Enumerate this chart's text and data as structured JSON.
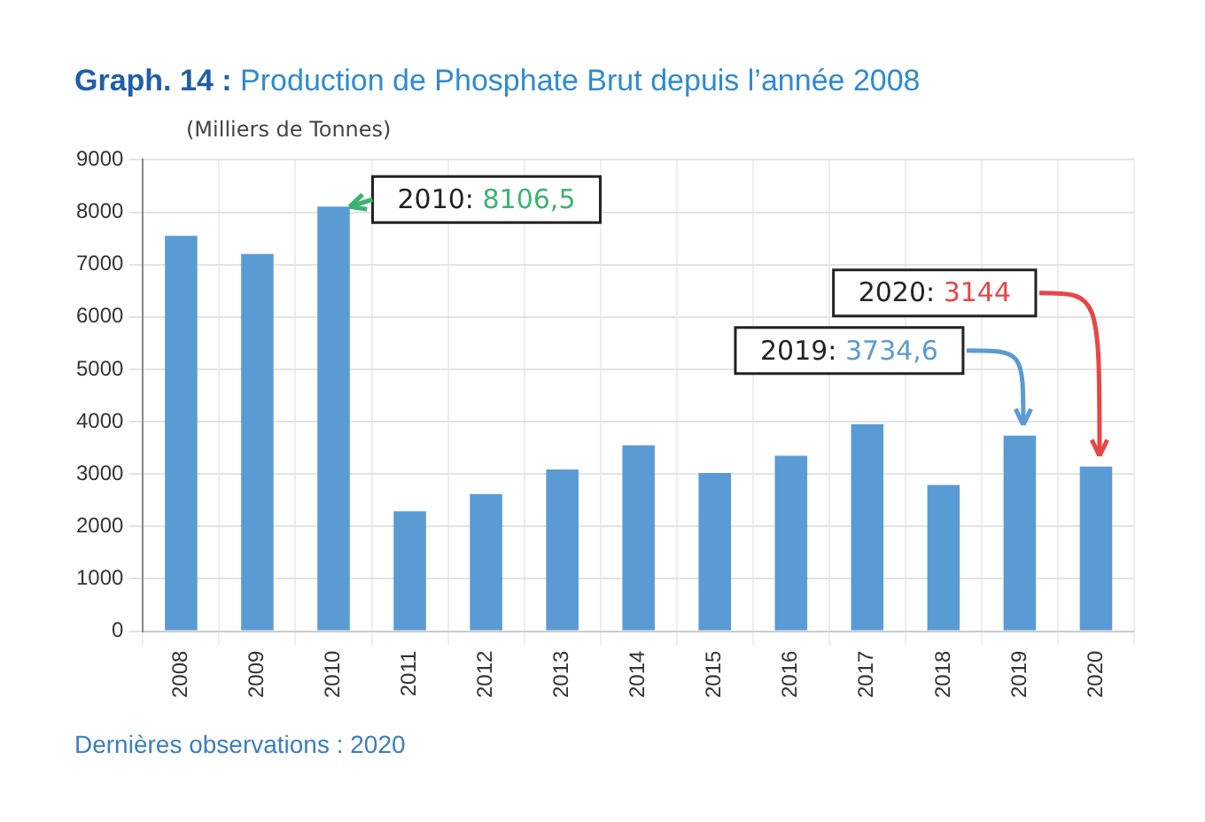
{
  "chart_data": {
    "type": "bar",
    "title": "Graph. 14 : Production de Phosphate Brut depuis l’année 2008",
    "ylabel": "(Milliers de Tonnes)",
    "categories": [
      "2008",
      "2009",
      "2010",
      "2011",
      "2012",
      "2013",
      "2014",
      "2015",
      "2016",
      "2017",
      "2018",
      "2019",
      "2020"
    ],
    "values": [
      7550,
      7200,
      8106.5,
      2290,
      2620,
      3090,
      3550,
      3020,
      3350,
      3950,
      2790,
      3734.6,
      3144
    ],
    "color": "#5b9bd5",
    "ylim": [
      0,
      9000
    ],
    "yticks": [
      0,
      1000,
      2000,
      3000,
      4000,
      5000,
      6000,
      7000,
      8000,
      9000
    ],
    "grid": true,
    "annotations": [
      {
        "text": "2010: 8106,5",
        "x": "2010",
        "y": 8106.5
      },
      {
        "text": "2019: 3734,6",
        "x": "2019",
        "y": 3734.6
      },
      {
        "text": "2020: 3144",
        "x": "2020",
        "y": 3144
      },
      "Dernières observations : 2020"
    ]
  }
}
